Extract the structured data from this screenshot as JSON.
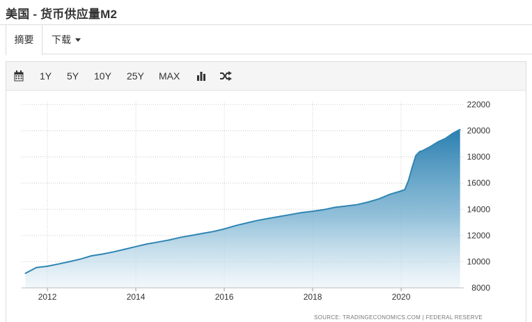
{
  "header": {
    "title": "美国 - 货币供应量M2"
  },
  "tabs": [
    {
      "label": "摘要"
    },
    {
      "label": "下载"
    }
  ],
  "toolbar": {
    "ranges": [
      "1Y",
      "5Y",
      "10Y",
      "25Y",
      "MAX"
    ],
    "icons": [
      "calendar-icon",
      "bar-chart-icon",
      "shuffle-icon"
    ]
  },
  "chart_data": {
    "type": "area",
    "title": "",
    "xlabel": "",
    "ylabel": "",
    "ylim": [
      8000,
      22000
    ],
    "xlim": [
      "2011-06",
      "2021-06"
    ],
    "grid": true,
    "y_ticks": [
      "8000",
      "10000",
      "12000",
      "14000",
      "16000",
      "18000",
      "20000",
      "22000"
    ],
    "x_ticks": [
      "2012",
      "2014",
      "2016",
      "2018",
      "2020"
    ],
    "color": "#2f85b3",
    "source": "SOURCE:  TRADINGECONOMICS.COM   |   FEDERAL  RESERVE",
    "series": [
      {
        "x": [
          "2011-07",
          "2011-10",
          "2012-01",
          "2012-04",
          "2012-07",
          "2012-10",
          "2013-01",
          "2013-04",
          "2013-07",
          "2013-10",
          "2014-01",
          "2014-04",
          "2014-07",
          "2014-10",
          "2015-01",
          "2015-04",
          "2015-07",
          "2015-10",
          "2016-01",
          "2016-04",
          "2016-07",
          "2016-10",
          "2017-01",
          "2017-04",
          "2017-07",
          "2017-10",
          "2018-01",
          "2018-04",
          "2018-07",
          "2018-10",
          "2019-01",
          "2019-04",
          "2019-07",
          "2019-10",
          "2020-01",
          "2020-02",
          "2020-03",
          "2020-04",
          "2020-05",
          "2020-06",
          "2020-07",
          "2020-09",
          "2020-11",
          "2021-01",
          "2021-03",
          "2021-05"
        ],
        "values": [
          9100,
          9550,
          9650,
          9820,
          10000,
          10200,
          10450,
          10580,
          10750,
          10950,
          11150,
          11350,
          11500,
          11650,
          11850,
          12000,
          12150,
          12300,
          12500,
          12750,
          12950,
          13150,
          13300,
          13450,
          13600,
          13750,
          13850,
          13970,
          14150,
          14250,
          14350,
          14550,
          14800,
          15150,
          15400,
          15500,
          16200,
          17200,
          18100,
          18400,
          18500,
          18800,
          19150,
          19400,
          19800,
          20100
        ]
      }
    ]
  }
}
